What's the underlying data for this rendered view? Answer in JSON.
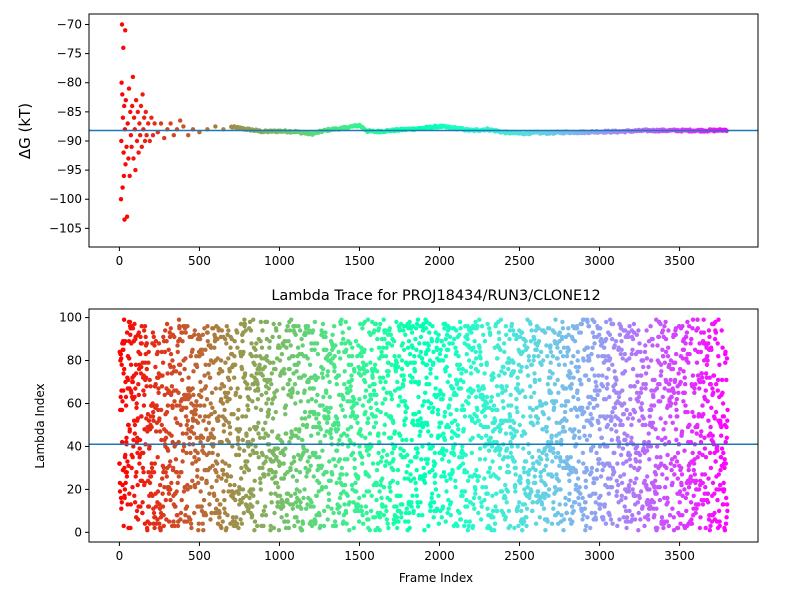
{
  "chart_data": [
    {
      "type": "scatter",
      "title": "",
      "xlabel": "",
      "ylabel": "ΔG (kT)",
      "xlim": [
        -190,
        3990
      ],
      "ylim": [
        -108.2,
        -68.2
      ],
      "xticks": [
        0,
        500,
        1000,
        1500,
        2000,
        2500,
        3000,
        3500
      ],
      "yticks": [
        -105,
        -100,
        -95,
        -90,
        -85,
        -80,
        -75,
        -70
      ],
      "ytick_labels": [
        "−105",
        "−100",
        "−95",
        "−90",
        "−85",
        "−80",
        "−75",
        "−70"
      ],
      "reference_line": {
        "y": -88.2,
        "color": "#1f77b4"
      },
      "point_color_scheme": "rainbow, red at frame 0 to violet at frame 3800",
      "frames": 3800,
      "series": [
        {
          "points": [
            [
              10,
              -100
            ],
            [
              12,
              -90
            ],
            [
              14,
              -80
            ],
            [
              16,
              -70
            ],
            [
              18,
              -82
            ],
            [
              20,
              -98
            ],
            [
              22,
              -86
            ],
            [
              24,
              -74
            ],
            [
              26,
              -92
            ],
            [
              28,
              -96
            ],
            [
              30,
              -84
            ],
            [
              32,
              -103.5
            ],
            [
              34,
              -88
            ],
            [
              36,
              -71
            ],
            [
              38,
              -94
            ],
            [
              40,
              -83
            ],
            [
              44,
              -91
            ],
            [
              48,
              -103
            ],
            [
              52,
              -87
            ],
            [
              56,
              -93
            ],
            [
              60,
              -81
            ],
            [
              64,
              -96
            ],
            [
              68,
              -85
            ],
            [
              72,
              -89
            ],
            [
              76,
              -91
            ],
            [
              80,
              -84
            ],
            [
              84,
              -79
            ],
            [
              88,
              -93
            ],
            [
              92,
              -86
            ],
            [
              96,
              -88
            ],
            [
              100,
              -95
            ],
            [
              104,
              -83
            ],
            [
              110,
              -90
            ],
            [
              115,
              -85
            ],
            [
              120,
              -92
            ],
            [
              125,
              -87
            ],
            [
              130,
              -89
            ],
            [
              135,
              -84
            ],
            [
              140,
              -91
            ],
            [
              145,
              -82
            ],
            [
              150,
              -88
            ],
            [
              155,
              -86
            ],
            [
              160,
              -90
            ],
            [
              165,
              -85
            ],
            [
              170,
              -89
            ],
            [
              180,
              -87
            ],
            [
              190,
              -90
            ],
            [
              200,
              -86
            ],
            [
              210,
              -89
            ],
            [
              220,
              -87
            ],
            [
              240,
              -88.5
            ],
            [
              260,
              -87
            ],
            [
              280,
              -89.5
            ],
            [
              300,
              -88
            ],
            [
              320,
              -87
            ],
            [
              340,
              -89
            ],
            [
              360,
              -88
            ],
            [
              380,
              -86.5
            ],
            [
              400,
              -87.5
            ],
            [
              430,
              -89
            ],
            [
              460,
              -88
            ],
            [
              500,
              -88.5
            ],
            [
              550,
              -88
            ],
            [
              600,
              -87.5
            ],
            [
              650,
              -88
            ],
            [
              700,
              -87.6
            ]
          ],
          "trend_points": [
            [
              700,
              -87.6
            ],
            [
              800,
              -88.0
            ],
            [
              900,
              -88.4
            ],
            [
              1000,
              -88.3
            ],
            [
              1100,
              -88.4
            ],
            [
              1200,
              -88.8
            ],
            [
              1300,
              -88.1
            ],
            [
              1400,
              -87.8
            ],
            [
              1500,
              -87.3
            ],
            [
              1550,
              -88.3
            ],
            [
              1600,
              -88.4
            ],
            [
              1700,
              -88.2
            ],
            [
              1800,
              -88.0
            ],
            [
              1900,
              -87.8
            ],
            [
              2000,
              -87.5
            ],
            [
              2100,
              -87.8
            ],
            [
              2200,
              -88.2
            ],
            [
              2300,
              -88.0
            ],
            [
              2400,
              -88.5
            ],
            [
              2500,
              -88.7
            ],
            [
              2600,
              -88.6
            ],
            [
              2700,
              -88.6
            ],
            [
              2800,
              -88.5
            ],
            [
              2900,
              -88.5
            ],
            [
              3000,
              -88.4
            ],
            [
              3100,
              -88.4
            ],
            [
              3200,
              -88.3
            ],
            [
              3300,
              -88.2
            ],
            [
              3400,
              -88.2
            ],
            [
              3500,
              -88.2
            ],
            [
              3600,
              -88.2
            ],
            [
              3700,
              -88.2
            ],
            [
              3800,
              -88.1
            ]
          ]
        }
      ]
    },
    {
      "type": "scatter",
      "title": "Lambda Trace for PROJ18434/RUN3/CLONE12",
      "xlabel": "Frame Index",
      "ylabel": "Lambda Index",
      "xlim": [
        -190,
        3990
      ],
      "ylim": [
        -4.5,
        104
      ],
      "xticks": [
        0,
        500,
        1000,
        1500,
        2000,
        2500,
        3000,
        3500
      ],
      "yticks": [
        0,
        20,
        40,
        60,
        80,
        100
      ],
      "reference_line": {
        "y": 41,
        "color": "#1f77b4"
      },
      "point_color_scheme": "rainbow, red at frame 0 to violet at frame 3800",
      "series": [
        {
          "x_range": [
            0,
            3800
          ],
          "y_range": [
            1,
            99
          ],
          "n_points": 3800,
          "distribution": "one lambda index per frame, spread roughly uniformly across 1–99"
        }
      ]
    }
  ]
}
